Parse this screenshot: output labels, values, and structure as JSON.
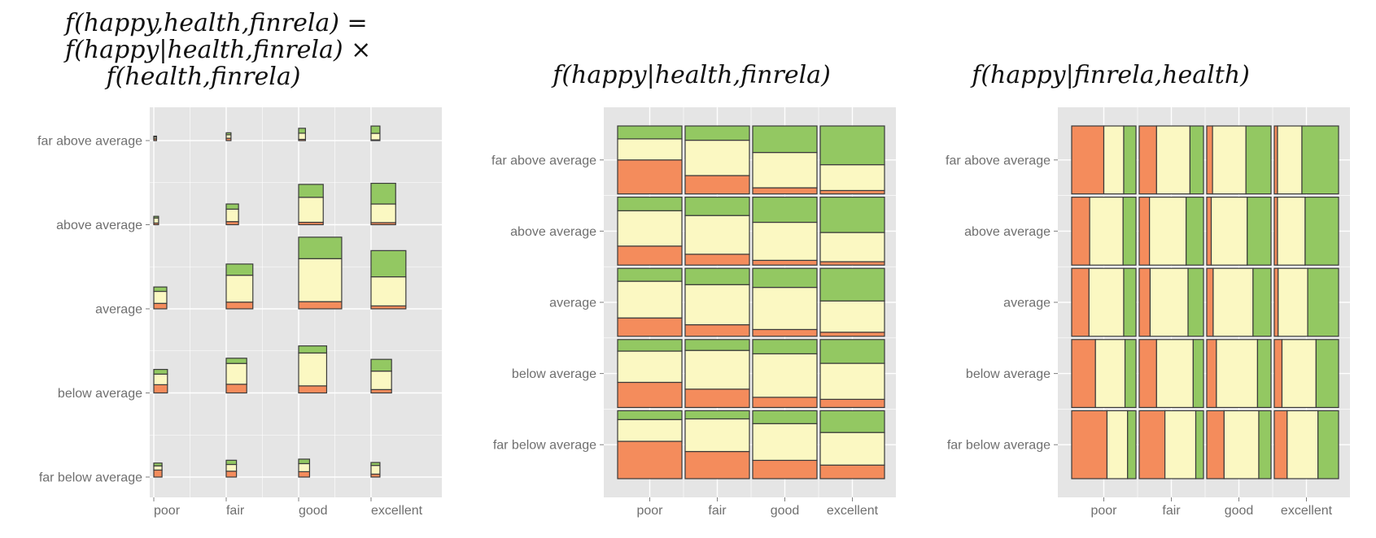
{
  "colors": {
    "panel_background": "#e5e5e5",
    "gridline": "#ffffff",
    "tile_border": "#3a3a3a",
    "happy_low": "#f48c5c",
    "happy_mid": "#fbf8c2",
    "happy_high": "#93c862",
    "tick_text": "#6f6f6f"
  },
  "chart_data": [
    {
      "type": "mosaic",
      "title_lines": [
        "f(happy,health,finrela) =",
        "f(happy|health,finrela) ×",
        "f(health,finrela)"
      ],
      "x_categories": [
        "poor",
        "fair",
        "good",
        "excellent"
      ],
      "y_categories": [
        "far below average",
        "below average",
        "average",
        "above average",
        "far above average"
      ],
      "cells": [
        {
          "x": "poor",
          "y": "far below average",
          "w": 0.12,
          "h": 0.25,
          "happy": [
            0.5,
            0.3,
            0.2
          ]
        },
        {
          "x": "fair",
          "y": "far below average",
          "w": 0.15,
          "h": 0.3,
          "happy": [
            0.35,
            0.4,
            0.25
          ]
        },
        {
          "x": "good",
          "y": "far below average",
          "w": 0.16,
          "h": 0.32,
          "happy": [
            0.3,
            0.45,
            0.25
          ]
        },
        {
          "x": "excellent",
          "y": "far below average",
          "w": 0.13,
          "h": 0.26,
          "happy": [
            0.2,
            0.6,
            0.2
          ]
        },
        {
          "x": "poor",
          "y": "below average",
          "w": 0.2,
          "h": 0.42,
          "happy": [
            0.35,
            0.45,
            0.2
          ]
        },
        {
          "x": "fair",
          "y": "below average",
          "w": 0.3,
          "h": 0.62,
          "happy": [
            0.25,
            0.6,
            0.15
          ]
        },
        {
          "x": "good",
          "y": "below average",
          "w": 0.41,
          "h": 0.84,
          "happy": [
            0.15,
            0.7,
            0.15
          ]
        },
        {
          "x": "excellent",
          "y": "below average",
          "w": 0.3,
          "h": 0.6,
          "happy": [
            0.1,
            0.55,
            0.35
          ]
        },
        {
          "x": "poor",
          "y": "average",
          "w": 0.19,
          "h": 0.39,
          "happy": [
            0.25,
            0.55,
            0.2
          ]
        },
        {
          "x": "fair",
          "y": "average",
          "w": 0.39,
          "h": 0.8,
          "happy": [
            0.15,
            0.6,
            0.25
          ]
        },
        {
          "x": "good",
          "y": "average",
          "w": 0.63,
          "h": 1.28,
          "happy": [
            0.1,
            0.6,
            0.3
          ]
        },
        {
          "x": "excellent",
          "y": "average",
          "w": 0.51,
          "h": 1.04,
          "happy": [
            0.05,
            0.5,
            0.45
          ]
        },
        {
          "x": "poor",
          "y": "above average",
          "w": 0.07,
          "h": 0.15,
          "happy": [
            0.2,
            0.6,
            0.2
          ]
        },
        {
          "x": "fair",
          "y": "above average",
          "w": 0.18,
          "h": 0.37,
          "happy": [
            0.15,
            0.6,
            0.25
          ]
        },
        {
          "x": "good",
          "y": "above average",
          "w": 0.36,
          "h": 0.72,
          "happy": [
            0.06,
            0.62,
            0.32
          ]
        },
        {
          "x": "excellent",
          "y": "above average",
          "w": 0.36,
          "h": 0.74,
          "happy": [
            0.05,
            0.45,
            0.5
          ]
        },
        {
          "x": "poor",
          "y": "far above average",
          "w": 0.04,
          "h": 0.08,
          "happy": [
            0.4,
            0.4,
            0.2
          ]
        },
        {
          "x": "fair",
          "y": "far above average",
          "w": 0.07,
          "h": 0.14,
          "happy": [
            0.3,
            0.45,
            0.25
          ]
        },
        {
          "x": "good",
          "y": "far above average",
          "w": 0.1,
          "h": 0.22,
          "happy": [
            0.1,
            0.5,
            0.4
          ]
        },
        {
          "x": "excellent",
          "y": "far above average",
          "w": 0.13,
          "h": 0.26,
          "happy": [
            0.05,
            0.45,
            0.5
          ]
        }
      ]
    },
    {
      "type": "mosaic",
      "title_lines": [
        "f(happy|health,finrela)"
      ],
      "x_categories": [
        "poor",
        "fair",
        "good",
        "excellent"
      ],
      "y_categories": [
        "far below average",
        "below average",
        "average",
        "above average",
        "far above average"
      ],
      "cells": [
        {
          "x": "poor",
          "y": "far below average",
          "happy": [
            0.55,
            0.32,
            0.13
          ]
        },
        {
          "x": "fair",
          "y": "far below average",
          "happy": [
            0.4,
            0.48,
            0.12
          ]
        },
        {
          "x": "good",
          "y": "far below average",
          "happy": [
            0.27,
            0.54,
            0.19
          ]
        },
        {
          "x": "excellent",
          "y": "far below average",
          "happy": [
            0.2,
            0.48,
            0.32
          ]
        },
        {
          "x": "poor",
          "y": "below average",
          "happy": [
            0.37,
            0.46,
            0.17
          ]
        },
        {
          "x": "fair",
          "y": "below average",
          "happy": [
            0.27,
            0.57,
            0.16
          ]
        },
        {
          "x": "good",
          "y": "below average",
          "happy": [
            0.15,
            0.64,
            0.21
          ]
        },
        {
          "x": "excellent",
          "y": "below average",
          "happy": [
            0.12,
            0.53,
            0.35
          ]
        },
        {
          "x": "poor",
          "y": "average",
          "happy": [
            0.27,
            0.54,
            0.19
          ]
        },
        {
          "x": "fair",
          "y": "average",
          "happy": [
            0.17,
            0.59,
            0.24
          ]
        },
        {
          "x": "good",
          "y": "average",
          "happy": [
            0.1,
            0.62,
            0.28
          ]
        },
        {
          "x": "excellent",
          "y": "average",
          "happy": [
            0.06,
            0.46,
            0.48
          ]
        },
        {
          "x": "poor",
          "y": "above average",
          "happy": [
            0.28,
            0.52,
            0.2
          ]
        },
        {
          "x": "fair",
          "y": "above average",
          "happy": [
            0.16,
            0.57,
            0.27
          ]
        },
        {
          "x": "good",
          "y": "above average",
          "happy": [
            0.07,
            0.56,
            0.37
          ]
        },
        {
          "x": "excellent",
          "y": "above average",
          "happy": [
            0.05,
            0.43,
            0.52
          ]
        },
        {
          "x": "poor",
          "y": "far above average",
          "happy": [
            0.5,
            0.31,
            0.19
          ]
        },
        {
          "x": "fair",
          "y": "far above average",
          "happy": [
            0.27,
            0.52,
            0.21
          ]
        },
        {
          "x": "good",
          "y": "far above average",
          "happy": [
            0.09,
            0.52,
            0.39
          ]
        },
        {
          "x": "excellent",
          "y": "far above average",
          "happy": [
            0.05,
            0.38,
            0.57
          ]
        }
      ]
    },
    {
      "type": "mosaic",
      "title_lines": [
        "f(happy|finrela,health)"
      ],
      "x_categories": [
        "poor",
        "fair",
        "good",
        "excellent"
      ],
      "y_categories": [
        "far below average",
        "below average",
        "average",
        "above average",
        "far above average"
      ],
      "cells": [
        {
          "x": "poor",
          "y": "far below average",
          "happy": [
            0.55,
            0.32,
            0.13
          ]
        },
        {
          "x": "fair",
          "y": "far below average",
          "happy": [
            0.4,
            0.48,
            0.12
          ]
        },
        {
          "x": "good",
          "y": "far below average",
          "happy": [
            0.27,
            0.54,
            0.19
          ]
        },
        {
          "x": "excellent",
          "y": "far below average",
          "happy": [
            0.2,
            0.48,
            0.32
          ]
        },
        {
          "x": "poor",
          "y": "below average",
          "happy": [
            0.37,
            0.46,
            0.17
          ]
        },
        {
          "x": "fair",
          "y": "below average",
          "happy": [
            0.27,
            0.57,
            0.16
          ]
        },
        {
          "x": "good",
          "y": "below average",
          "happy": [
            0.15,
            0.64,
            0.21
          ]
        },
        {
          "x": "excellent",
          "y": "below average",
          "happy": [
            0.12,
            0.53,
            0.35
          ]
        },
        {
          "x": "poor",
          "y": "average",
          "happy": [
            0.27,
            0.54,
            0.19
          ]
        },
        {
          "x": "fair",
          "y": "average",
          "happy": [
            0.17,
            0.59,
            0.24
          ]
        },
        {
          "x": "good",
          "y": "average",
          "happy": [
            0.1,
            0.62,
            0.28
          ]
        },
        {
          "x": "excellent",
          "y": "average",
          "happy": [
            0.06,
            0.46,
            0.48
          ]
        },
        {
          "x": "poor",
          "y": "above average",
          "happy": [
            0.28,
            0.52,
            0.2
          ]
        },
        {
          "x": "fair",
          "y": "above average",
          "happy": [
            0.16,
            0.57,
            0.27
          ]
        },
        {
          "x": "good",
          "y": "above average",
          "happy": [
            0.07,
            0.56,
            0.37
          ]
        },
        {
          "x": "excellent",
          "y": "above average",
          "happy": [
            0.05,
            0.43,
            0.52
          ]
        },
        {
          "x": "poor",
          "y": "far above average",
          "happy": [
            0.5,
            0.31,
            0.19
          ]
        },
        {
          "x": "fair",
          "y": "far above average",
          "happy": [
            0.27,
            0.52,
            0.21
          ]
        },
        {
          "x": "good",
          "y": "far above average",
          "happy": [
            0.09,
            0.52,
            0.39
          ]
        },
        {
          "x": "excellent",
          "y": "far above average",
          "happy": [
            0.05,
            0.38,
            0.57
          ]
        }
      ]
    }
  ]
}
